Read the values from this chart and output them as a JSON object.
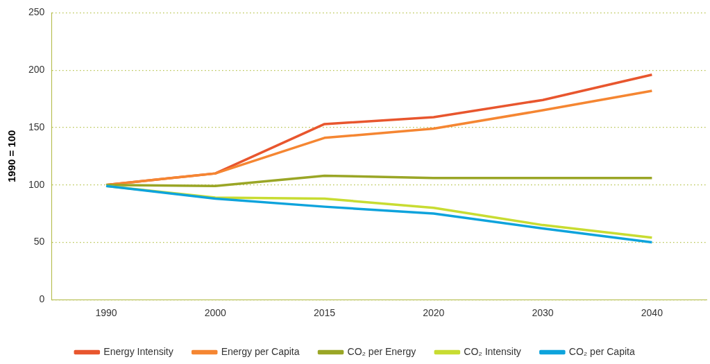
{
  "chart_data": {
    "type": "line",
    "ylabel": "1990 = 100",
    "categories": [
      "1990",
      "2000",
      "2015",
      "2020",
      "2030",
      "2040"
    ],
    "ylim": [
      0,
      250
    ],
    "yticks": [
      0,
      50,
      100,
      150,
      200,
      250
    ],
    "grid": "y",
    "legend": "bottom",
    "marker": "none",
    "line_style": "solid",
    "series": [
      {
        "name": "Energy Intensity",
        "color": "#e8562e",
        "values": [
          100,
          110,
          153,
          159,
          174,
          196
        ]
      },
      {
        "name": "Energy per Capita",
        "color": "#f58632",
        "values": [
          100,
          110,
          141,
          149,
          165,
          182
        ]
      },
      {
        "name": "CO₂ per Energy",
        "color": "#9aa626",
        "values": [
          100,
          99,
          108,
          106,
          106,
          106
        ]
      },
      {
        "name": "CO₂ Intensity",
        "color": "#c8dc32",
        "values": [
          99,
          89,
          88,
          80,
          65,
          54
        ]
      },
      {
        "name": "CO₂ per Capita",
        "color": "#0ea3dc",
        "values": [
          99,
          88,
          81,
          75,
          62,
          50
        ]
      }
    ]
  }
}
